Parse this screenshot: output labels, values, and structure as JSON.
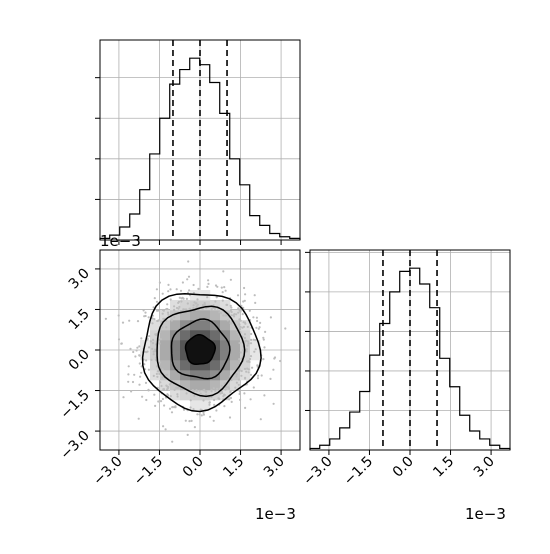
{
  "chart_data": {
    "type": "corner",
    "parameters": 2,
    "offset_text": "1e−3",
    "tick_labels": [
      "−3.0",
      "−1.5",
      "0.0",
      "1.5",
      "3.0"
    ],
    "tick_values": [
      -3.0,
      -1.5,
      0.0,
      1.5,
      3.0
    ],
    "axis_range": [
      -3.7,
      3.7
    ],
    "grid": true,
    "histogram_1": {
      "bin_edges": [
        -3.7,
        -3.34,
        -2.97,
        -2.6,
        -2.23,
        -1.86,
        -1.49,
        -1.12,
        -0.75,
        -0.38,
        -0.01,
        0.36,
        0.73,
        1.1,
        1.47,
        1.84,
        2.21,
        2.58,
        2.95,
        3.32,
        3.7
      ],
      "counts": [
        1,
        3,
        8,
        16,
        31,
        53,
        75,
        96,
        105,
        112,
        108,
        97,
        78,
        50,
        34,
        15,
        9,
        4,
        2,
        1
      ],
      "quantiles": [
        -1.0,
        0.0,
        1.0
      ]
    },
    "histogram_2": {
      "bin_edges": [
        -3.7,
        -3.34,
        -2.97,
        -2.6,
        -2.23,
        -1.86,
        -1.49,
        -1.12,
        -0.75,
        -0.38,
        -0.01,
        0.36,
        0.73,
        1.1,
        1.47,
        1.84,
        2.21,
        2.58,
        2.95,
        3.32,
        3.7
      ],
      "counts": [
        1,
        3,
        7,
        14,
        24,
        37,
        60,
        80,
        100,
        113,
        115,
        105,
        90,
        58,
        40,
        22,
        12,
        7,
        3,
        1
      ],
      "quantiles": [
        -1.0,
        0.0,
        1.0
      ]
    },
    "contour_levels_sigma": [
      0.5,
      1.0,
      1.5,
      2.0
    ]
  }
}
